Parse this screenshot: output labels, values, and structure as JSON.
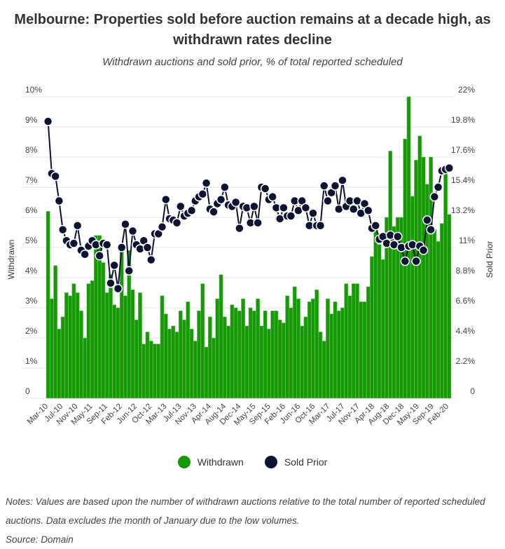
{
  "chart_data": {
    "type": "bar+line",
    "title": "Melbourne: Properties sold before auction remains at a decade high, as withdrawn rates decline",
    "subtitle": "Withdrawn auctions and sold prior, % of total reported scheduled",
    "ylabel_left": "Withdrawn",
    "ylabel_right": "Sold Prior",
    "ylim_left": [
      0,
      10
    ],
    "ylim_right": [
      0,
      22
    ],
    "left_ticks": [
      "0",
      "1%",
      "2%",
      "3%",
      "4%",
      "5%",
      "6%",
      "7%",
      "8%",
      "9%",
      "10%"
    ],
    "right_ticks": [
      "0",
      "2.2%",
      "4.4%",
      "6.6%",
      "8.8%",
      "11%",
      "13.2%",
      "15.4%",
      "17.6%",
      "19.8%",
      "22%"
    ],
    "x_tick_labels": [
      "Mar-10",
      "Jul-10",
      "Nov-10",
      "May-11",
      "Sep-11",
      "Feb-12",
      "Jun-12",
      "Oct-12",
      "Mar-13",
      "Jul-13",
      "Nov-13",
      "Apr-14",
      "Aug-14",
      "Dec-14",
      "May-15",
      "Sep-15",
      "Feb-16",
      "Jun-16",
      "Oct-16",
      "Mar-17",
      "Jul-17",
      "Nov-17",
      "Apr-18",
      "Aug-18",
      "Dec-18",
      "May-19",
      "Sep-19",
      "Feb-20"
    ],
    "grid": true,
    "legend_position": "bottom",
    "series": [
      {
        "name": "Withdrawn",
        "type": "bar",
        "axis": "left",
        "color": "#159a05",
        "values": [
          6.2,
          3.3,
          4.4,
          2.3,
          2.7,
          3.5,
          3.4,
          3.8,
          3.5,
          2.9,
          2.0,
          3.8,
          3.9,
          5.4,
          5.4,
          4.5,
          3.5,
          4.1,
          3.1,
          3.0,
          4.9,
          3.4,
          4.9,
          3.6,
          2.6,
          3.5,
          1.8,
          2.2,
          1.9,
          1.8,
          1.8,
          3.4,
          2.8,
          2.3,
          2.4,
          2.2,
          2.9,
          2.6,
          3.2,
          2.3,
          1.9,
          2.9,
          3.8,
          1.7,
          2.7,
          2.0,
          3.3,
          4.1,
          2.7,
          2.4,
          3.1,
          3.0,
          2.9,
          3.3,
          2.4,
          3.0,
          2.9,
          3.3,
          2.4,
          2.9,
          2.3,
          2.9,
          2.9,
          2.6,
          2.5,
          3.4,
          3.0,
          3.7,
          3.3,
          2.4,
          2.7,
          3.2,
          3.3,
          3.6,
          2.2,
          1.9,
          3.3,
          2.8,
          3.2,
          2.9,
          3.0,
          3.8,
          3.4,
          3.8,
          3.8,
          3.2,
          3.2,
          3.7,
          4.7,
          5.6,
          5.1,
          4.6,
          6.0,
          8.2,
          5.7,
          6.0,
          6.0,
          8.6,
          10.0,
          6.7,
          7.9,
          8.7,
          8.0,
          7.1,
          8.0,
          5.6,
          5.2,
          5.8,
          7.5,
          6.1
        ]
      },
      {
        "name": "Sold Prior",
        "type": "line",
        "axis": "right",
        "color": "#0d1433",
        "values": [
          20.2,
          16.4,
          16.2,
          14.4,
          12.3,
          11.5,
          11.2,
          11.3,
          12.6,
          10.8,
          10.5,
          11.1,
          11.5,
          11.2,
          10.4,
          11.3,
          11.2,
          8.4,
          9.7,
          8.0,
          11.0,
          12.7,
          9.3,
          12.2,
          11.2,
          10.9,
          11.5,
          11.0,
          10.1,
          12.0,
          12.0,
          12.5,
          14.5,
          13.1,
          13.0,
          12.8,
          14.0,
          13.3,
          13.5,
          13.7,
          14.4,
          14.7,
          14.9,
          15.7,
          13.8,
          13.6,
          14.2,
          14.5,
          15.4,
          14.1,
          14.0,
          14.3,
          12.4,
          14.0,
          13.9,
          12.8,
          14.0,
          12.8,
          15.4,
          15.3,
          14.5,
          14.7,
          13.9,
          13.1,
          13.9,
          13.3,
          13.3,
          14.4,
          13.7,
          14.4,
          13.9,
          12.6,
          13.5,
          12.6,
          12.6,
          15.5,
          14.4,
          15.0,
          15.5,
          13.8,
          15.9,
          14.0,
          14.4,
          13.8,
          14.4,
          13.5,
          14.2,
          13.7,
          12.4,
          12.6,
          11.6,
          11.8,
          11.3,
          11.9,
          11.2,
          11.8,
          11.0,
          10.0,
          11.1,
          11.2,
          10.0,
          11.1,
          10.8,
          13.0,
          12.3,
          14.7,
          15.4,
          16.6,
          16.7,
          16.8
        ]
      }
    ]
  },
  "notes": "Notes: Values are based upon the number of withdrawn auctions relative to the total number of reported scheduled auctions. Data excludes the month of January due to the low volumes.",
  "source": "Source: Domain"
}
